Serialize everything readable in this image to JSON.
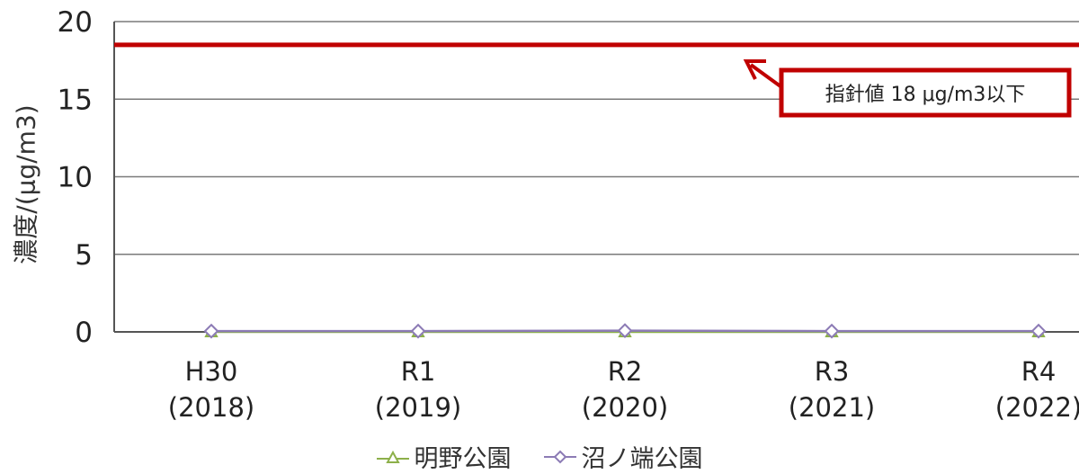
{
  "chart_data": {
    "type": "line",
    "ylabel": "濃度/(μg/m3)",
    "ylim": [
      0,
      20
    ],
    "yticks": [
      "0",
      "5",
      "10",
      "15",
      "20"
    ],
    "categories": [
      {
        "top": "H30",
        "bottom": "(2018)"
      },
      {
        "top": "R1",
        "bottom": "(2019)"
      },
      {
        "top": "R2",
        "bottom": "(2020)"
      },
      {
        "top": "R3",
        "bottom": "(2021)"
      },
      {
        "top": "R4",
        "bottom": "(2022)"
      }
    ],
    "series": [
      {
        "name": "明野公園",
        "marker": "triangle",
        "color": "#8db04a",
        "values": [
          0.0,
          0.0,
          0.0,
          0.0,
          0.0
        ]
      },
      {
        "name": "沼ノ端公園",
        "marker": "diamond",
        "color": "#8c7bb5",
        "values": [
          0.05,
          0.05,
          0.08,
          0.05,
          0.05
        ]
      }
    ],
    "reference_line": {
      "value": 18.5,
      "color": "#c00000"
    },
    "annotation": {
      "text": "指針値 18 μg/m3以下",
      "border_color": "#c00000"
    },
    "grid": true,
    "legend_position": "bottom"
  }
}
